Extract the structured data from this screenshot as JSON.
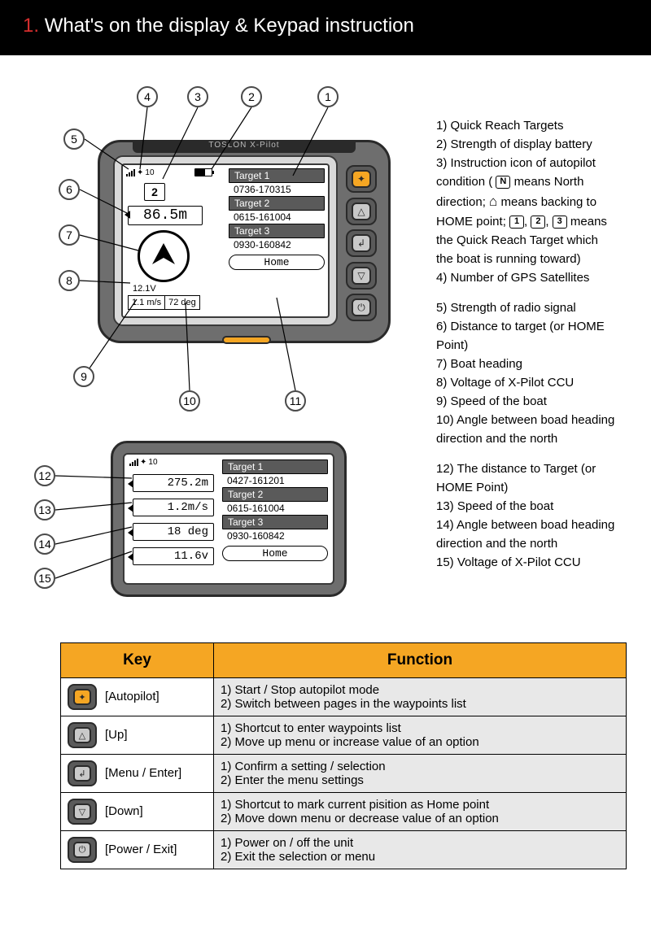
{
  "title": {
    "number": "1.",
    "text": "What's on the display & Keypad instruction"
  },
  "colors": {
    "title_bg": "#000000",
    "title_num": "#d72e2e",
    "device_body": "#6e6e6e",
    "device_border": "#2a2a2a",
    "device_bezel": "#d9d9d9",
    "button_gray": "#c9c9c9",
    "accent_orange": "#f5a623",
    "table_header": "#f5a623",
    "table_alt": "#e8e8e8"
  },
  "device1": {
    "brand": "TOSLON X-Pilot",
    "status": {
      "sat_count": "10",
      "signal_bars": 4
    },
    "mode_indicator": "2",
    "distance": "86.5m",
    "voltage": "12.1V",
    "speed": "1.1 m/s",
    "angle": "72 deg",
    "targets": [
      {
        "label": "Target 1",
        "value": "0736-170315"
      },
      {
        "label": "Target 2",
        "value": "0615-161004"
      },
      {
        "label": "Target 3",
        "value": "0930-160842"
      }
    ],
    "home": "Home"
  },
  "device2": {
    "status": {
      "sat_count": "10",
      "signal_bars": 4
    },
    "distance": "275.2m",
    "speed": "1.2m/s",
    "angle": "18 deg",
    "voltage": "11.6v",
    "targets": [
      {
        "label": "Target 1",
        "value": "0427-161201"
      },
      {
        "label": "Target 2",
        "value": "0615-161004"
      },
      {
        "label": "Target 3",
        "value": "0930-160842"
      }
    ],
    "home": "Home"
  },
  "callouts_top": [
    "1",
    "2",
    "3",
    "4",
    "5",
    "6",
    "7",
    "8",
    "9",
    "10",
    "11"
  ],
  "callouts_bottom": [
    "12",
    "13",
    "14",
    "15"
  ],
  "legend": {
    "l1": "1) Quick Reach Targets",
    "l2": "2) Strength of display battery",
    "l3a": "3) Instruction icon of autopilot",
    "l3b": "condition (",
    "l3c": " means North",
    "l3d": "direction;  ",
    "l3e": " means backing to",
    "l3f": "HOME point; ",
    "l3g": " means",
    "l3h": "the Quick Reach Target which",
    "l3i": "the boat is running toward)",
    "l4": "4)  Number of GPS Satellites",
    "l5": "5) Strength of radio signal",
    "l6": "6) Distance to target (or HOME",
    "l6b": "Point)",
    "l7": "7) Boat heading",
    "l8": "8) Voltage of X-Pilot CCU",
    "l9": "9) Speed of the boat",
    "l10": "10) Angle between boad heading",
    "l10b": "direction and the north",
    "l12": "12) The distance to Target (or",
    "l12b": "HOME Point)",
    "l13": "13) Speed of the boat",
    "l14": "14)  Angle between boad heading",
    "l14b": "direction and the north",
    "l15": "15) Voltage of X-Pilot CCU"
  },
  "table": {
    "head_key": "Key",
    "head_fn": "Function",
    "rows": [
      {
        "icon": "autopilot",
        "orange": true,
        "glyph": "✦",
        "key": "[Autopilot]",
        "fn1": "1) Start / Stop autopilot mode",
        "fn2": "2) Switch between pages in the waypoints list"
      },
      {
        "icon": "up",
        "orange": false,
        "glyph": "△",
        "key": "[Up]",
        "fn1": "1) Shortcut to enter waypoints list",
        "fn2": "2) Move up menu or increase value of an option"
      },
      {
        "icon": "menu-enter",
        "orange": false,
        "glyph": "↲",
        "key": "[Menu / Enter]",
        "fn1": "1) Confirm a setting / selection",
        "fn2": "2) Enter the menu settings"
      },
      {
        "icon": "down",
        "orange": false,
        "glyph": "▽",
        "key": "[Down]",
        "fn1": "1) Shortcut to mark current pisition as Home point",
        "fn2": "2) Move down menu or decrease value of an option"
      },
      {
        "icon": "power-exit",
        "orange": false,
        "glyph": "⏻",
        "key": "[Power / Exit]",
        "fn1": "1) Power on / off the unit",
        "fn2": "2) Exit the selection or menu"
      }
    ]
  }
}
